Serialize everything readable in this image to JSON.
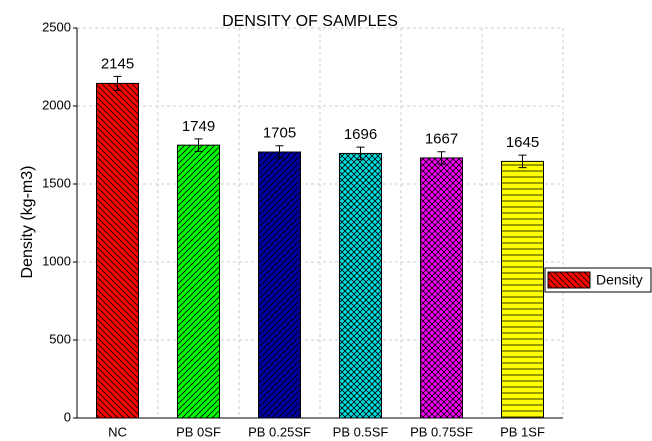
{
  "chart_data": {
    "type": "bar",
    "title": "DENSITY OF SAMPLES",
    "y_label": "Density (kg-m3)",
    "categories": [
      "NC",
      "PB 0SF",
      "PB 0.25SF",
      "PB 0.5SF",
      "PB 0.75SF",
      "PB 1SF"
    ],
    "series": [
      {
        "name": "Density",
        "color": "#ff0000",
        "values": [
          2145,
          1749,
          1705,
          1696,
          1667,
          1645
        ],
        "errors": [
          45,
          40,
          40,
          40,
          40,
          40
        ],
        "bar_colors": [
          "#ff0000",
          "#00ff00",
          "#0000a0",
          "#00e0e0",
          "#ff00ff",
          "#ffff00"
        ],
        "hatches": [
          "back-diagonal",
          "diagonal",
          "diagonal",
          "crosshatch",
          "crosshatch",
          "horizontal"
        ]
      }
    ],
    "ylim": [
      0,
      2500
    ],
    "yticks": [
      0,
      500,
      1000,
      1500,
      2000,
      2500
    ],
    "grid": true,
    "legend": "right"
  }
}
